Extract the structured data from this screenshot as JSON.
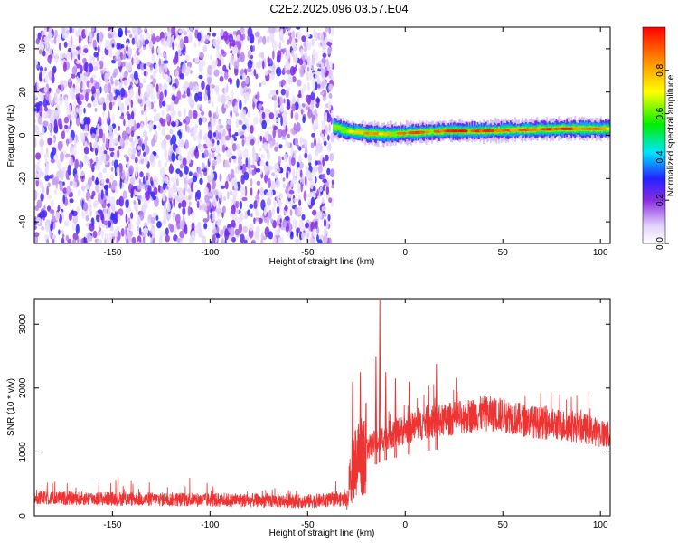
{
  "title": "C2E2.2025.096.03.57.E04",
  "chart_data": [
    {
      "type": "heatmap",
      "title": "C2E2.2025.096.03.57.E04",
      "xlabel": "Height of straight line (km)",
      "ylabel": "Frequency (Hz)",
      "xlim": [
        -190,
        105
      ],
      "ylim": [
        -50,
        50
      ],
      "xticks": [
        -150,
        -100,
        -50,
        0,
        50,
        100
      ],
      "yticks": [
        -40,
        -20,
        0,
        20,
        40
      ],
      "noise_region": {
        "x": [
          -190,
          -37
        ],
        "y": [
          -50,
          50
        ],
        "amplitude": [
          0.05,
          0.25
        ]
      },
      "signal_track": [
        {
          "x": -37,
          "freq": 4,
          "amplitude": 0.45
        },
        {
          "x": -30,
          "freq": 2,
          "amplitude": 0.7
        },
        {
          "x": -20,
          "freq": 1,
          "amplitude": 0.9
        },
        {
          "x": -10,
          "freq": 0.5,
          "amplitude": 0.85
        },
        {
          "x": 0,
          "freq": 1,
          "amplitude": 0.95
        },
        {
          "x": 20,
          "freq": 2,
          "amplitude": 1.0
        },
        {
          "x": 40,
          "freq": 2,
          "amplitude": 1.0
        },
        {
          "x": 60,
          "freq": 2.5,
          "amplitude": 0.95
        },
        {
          "x": 80,
          "freq": 3,
          "amplitude": 1.0
        },
        {
          "x": 100,
          "freq": 3,
          "amplitude": 0.9
        },
        {
          "x": 105,
          "freq": 3,
          "amplitude": 0.8
        }
      ],
      "colorbar": {
        "label": "Normalized spectral amplitude",
        "range": [
          0,
          1
        ],
        "ticks": [
          "0.0",
          "0.2",
          "0.4",
          "0.6",
          "0.8"
        ]
      }
    },
    {
      "type": "line",
      "xlabel": "Height of straight line (km)",
      "ylabel": "SNR (10 * v/v)",
      "xlim": [
        -190,
        105
      ],
      "ylim": [
        0,
        3400
      ],
      "xticks": [
        -150,
        -100,
        -50,
        0,
        50,
        100
      ],
      "yticks": [
        0,
        1000,
        2000,
        3000
      ],
      "color": "#ee3333",
      "envelope": {
        "x": [
          -190,
          -100,
          -50,
          -30,
          -28,
          -25,
          -20,
          -15,
          -10,
          0,
          10,
          20,
          30,
          40,
          50,
          60,
          70,
          80,
          90,
          100,
          105
        ],
        "y": [
          280,
          250,
          230,
          260,
          600,
          900,
          1050,
          1150,
          1250,
          1350,
          1450,
          1500,
          1550,
          1600,
          1580,
          1500,
          1450,
          1420,
          1380,
          1300,
          1250
        ]
      },
      "spikes": [
        {
          "x": -27,
          "y": 2100
        },
        {
          "x": -23,
          "y": 2250
        },
        {
          "x": -15,
          "y": 2500
        },
        {
          "x": -13,
          "y": 3380
        },
        {
          "x": -10,
          "y": 2250
        },
        {
          "x": -5,
          "y": 2150
        },
        {
          "x": 2,
          "y": 2100
        },
        {
          "x": 12,
          "y": 2050
        },
        {
          "x": 16,
          "y": 2380
        }
      ]
    }
  ]
}
